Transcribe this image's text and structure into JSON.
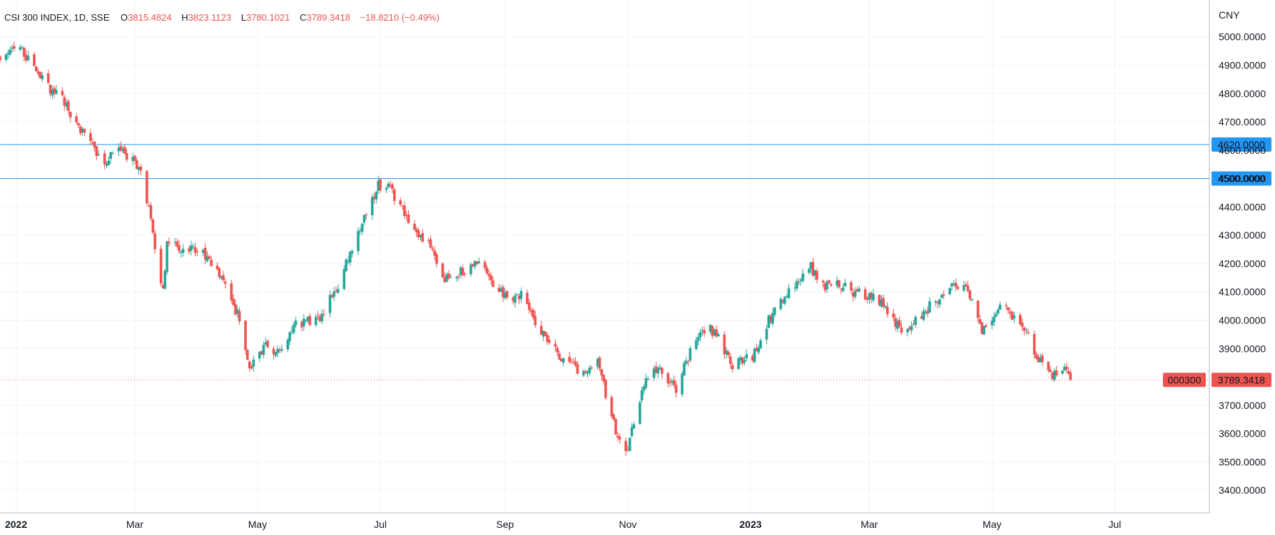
{
  "chart_data": {
    "type": "candlestick",
    "title": "CSI 300 INDEX, 1D, SSE",
    "ohlc_readout": {
      "o_label": "O",
      "o_value": "3815.4824",
      "h_label": "H",
      "h_value": "3823.1123",
      "l_label": "L",
      "l_value": "3780.1021",
      "c_label": "C",
      "c_value": "3789.3418",
      "change": "−18.8210 (−0.49%)"
    },
    "currency": "CNY",
    "ylim": [
      3320,
      5130
    ],
    "y_ticks": [
      3400,
      3500,
      3600,
      3700,
      3800,
      3900,
      4000,
      4100,
      4200,
      4300,
      4400,
      4500,
      4600,
      4700,
      4800,
      4900,
      5000
    ],
    "y_tick_labels": [
      "3400.0000",
      "3500.0000",
      "3600.0000",
      "3700.0000",
      "3800.0000",
      "3900.0000",
      "4000.0000",
      "4100.0000",
      "4200.0000",
      "4300.0000",
      "4400.0000",
      "4500.0000",
      "4600.0000",
      "4700.0000",
      "4800.0000",
      "4900.0000",
      "5000.0000"
    ],
    "x_tick_labels": [
      {
        "label": "2022",
        "date": "2022-01-01",
        "bold": true
      },
      {
        "label": "Mar",
        "date": "2022-03-01",
        "bold": false
      },
      {
        "label": "May",
        "date": "2022-05-01",
        "bold": false
      },
      {
        "label": "Jul",
        "date": "2022-07-01",
        "bold": false
      },
      {
        "label": "Sep",
        "date": "2022-09-01",
        "bold": false
      },
      {
        "label": "Nov",
        "date": "2022-11-01",
        "bold": false
      },
      {
        "label": "2023",
        "date": "2023-01-01",
        "bold": true
      },
      {
        "label": "Mar",
        "date": "2023-03-01",
        "bold": false
      },
      {
        "label": "May",
        "date": "2023-05-01",
        "bold": false
      },
      {
        "label": "Jul",
        "date": "2023-07-01",
        "bold": false
      }
    ],
    "xlim": [
      "2021-12-24",
      "2023-08-17"
    ],
    "horizontal_lines": [
      {
        "value": 4620,
        "label": "4620.0000",
        "color": "#2196f3"
      },
      {
        "value": 4500,
        "label": "4500.0000",
        "color": "#2196f3"
      }
    ],
    "last_price": {
      "symbol": "000300",
      "value": 3789.3418,
      "label": "3789.3418",
      "color": "#ef5350"
    },
    "colors": {
      "up": "#26a69a",
      "down": "#ef5350"
    },
    "path_points": [
      [
        "2021-12-24",
        4930
      ],
      [
        "2022-01-04",
        4960
      ],
      [
        "2022-01-10",
        4880
      ],
      [
        "2022-01-17",
        4820
      ],
      [
        "2022-01-24",
        4780
      ],
      [
        "2022-01-28",
        4720
      ],
      [
        "2022-02-07",
        4620
      ],
      [
        "2022-02-14",
        4560
      ],
      [
        "2022-02-21",
        4620
      ],
      [
        "2022-02-28",
        4560
      ],
      [
        "2022-03-04",
        4510
      ],
      [
        "2022-03-09",
        4350
      ],
      [
        "2022-03-15",
        4100
      ],
      [
        "2022-03-17",
        4280
      ],
      [
        "2022-03-25",
        4240
      ],
      [
        "2022-04-01",
        4250
      ],
      [
        "2022-04-08",
        4200
      ],
      [
        "2022-04-15",
        4130
      ],
      [
        "2022-04-22",
        4000
      ],
      [
        "2022-04-27",
        3820
      ],
      [
        "2022-05-05",
        3920
      ],
      [
        "2022-05-12",
        3880
      ],
      [
        "2022-05-20",
        3990
      ],
      [
        "2022-05-31",
        4000
      ],
      [
        "2022-06-10",
        4130
      ],
      [
        "2022-06-20",
        4300
      ],
      [
        "2022-06-30",
        4480
      ],
      [
        "2022-07-05",
        4470
      ],
      [
        "2022-07-15",
        4350
      ],
      [
        "2022-07-26",
        4260
      ],
      [
        "2022-08-02",
        4150
      ],
      [
        "2022-08-10",
        4170
      ],
      [
        "2022-08-18",
        4200
      ],
      [
        "2022-08-25",
        4140
      ],
      [
        "2022-09-01",
        4080
      ],
      [
        "2022-09-09",
        4090
      ],
      [
        "2022-09-19",
        3960
      ],
      [
        "2022-09-27",
        3880
      ],
      [
        "2022-10-11",
        3800
      ],
      [
        "2022-10-17",
        3860
      ],
      [
        "2022-10-24",
        3650
      ],
      [
        "2022-10-31",
        3520
      ],
      [
        "2022-11-04",
        3650
      ],
      [
        "2022-11-11",
        3800
      ],
      [
        "2022-11-17",
        3820
      ],
      [
        "2022-11-25",
        3750
      ],
      [
        "2022-11-30",
        3850
      ],
      [
        "2022-12-07",
        3970
      ],
      [
        "2022-12-15",
        3960
      ],
      [
        "2022-12-22",
        3840
      ],
      [
        "2023-01-03",
        3880
      ],
      [
        "2023-01-10",
        4000
      ],
      [
        "2023-01-18",
        4080
      ],
      [
        "2023-01-30",
        4200
      ],
      [
        "2023-02-06",
        4120
      ],
      [
        "2023-02-14",
        4130
      ],
      [
        "2023-02-21",
        4100
      ],
      [
        "2023-02-28",
        4090
      ],
      [
        "2023-03-08",
        4060
      ],
      [
        "2023-03-16",
        3970
      ],
      [
        "2023-03-24",
        4000
      ],
      [
        "2023-04-03",
        4070
      ],
      [
        "2023-04-10",
        4130
      ],
      [
        "2023-04-18",
        4120
      ],
      [
        "2023-04-26",
        3950
      ],
      [
        "2023-05-05",
        4050
      ],
      [
        "2023-05-10",
        4020
      ],
      [
        "2023-05-17",
        3980
      ],
      [
        "2023-05-24",
        3860
      ],
      [
        "2023-05-31",
        3800
      ],
      [
        "2023-06-05",
        3840
      ],
      [
        "2023-06-09",
        3789
      ]
    ]
  }
}
